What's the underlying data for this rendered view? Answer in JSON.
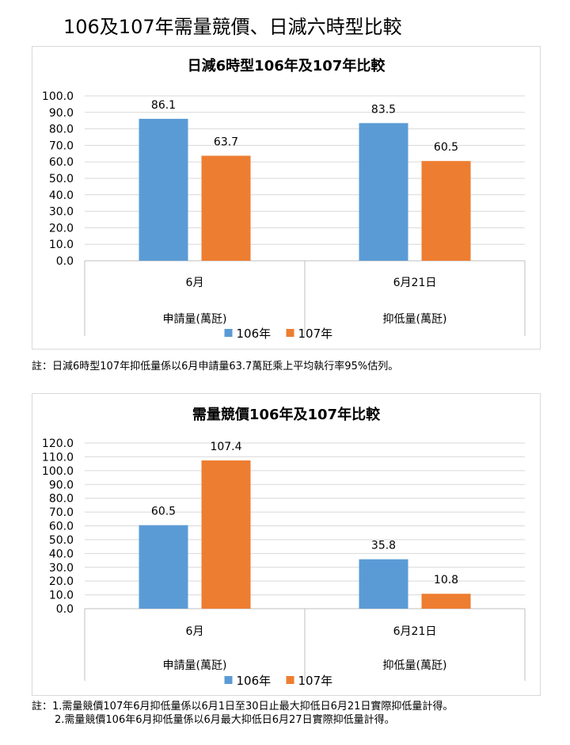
{
  "page": {
    "title": "106及107年需量競價、日減六時型比較"
  },
  "legend_colors": {
    "106年": "#5b9bd5",
    "107年": "#ed7d31"
  },
  "chart_data": [
    {
      "type": "bar",
      "title": "日減6時型106年及107年比較",
      "categories": [
        "6月",
        "6月21日"
      ],
      "group_labels": [
        "申請量(萬瓩)",
        "抑低量(萬瓩)"
      ],
      "series": [
        {
          "name": "106年",
          "values": [
            86.1,
            83.5
          ],
          "color": "#5b9bd5"
        },
        {
          "name": "107年",
          "values": [
            63.7,
            60.5
          ],
          "color": "#ed7d31"
        }
      ],
      "ylim": [
        0,
        100
      ],
      "ytick_step": 10,
      "y_tick_labels": [
        "0.0",
        "10.0",
        "20.0",
        "30.0",
        "40.0",
        "50.0",
        "60.0",
        "70.0",
        "80.0",
        "90.0",
        "100.0"
      ],
      "grid": true,
      "legend_position": "bottom"
    },
    {
      "type": "bar",
      "title": "需量競價106年及107年比較",
      "categories": [
        "6月",
        "6月21日"
      ],
      "group_labels": [
        "申請量(萬瓩)",
        "抑低量(萬瓩)"
      ],
      "series": [
        {
          "name": "106年",
          "values": [
            60.5,
            35.8
          ],
          "color": "#5b9bd5"
        },
        {
          "name": "107年",
          "values": [
            107.4,
            10.8
          ],
          "color": "#ed7d31"
        }
      ],
      "ylim": [
        0,
        120
      ],
      "ytick_step": 10,
      "y_tick_labels": [
        "0.0",
        "10.0",
        "20.0",
        "30.0",
        "40.0",
        "50.0",
        "60.0",
        "70.0",
        "80.0",
        "90.0",
        "100.0",
        "110.0",
        "120.0"
      ],
      "grid": true,
      "legend_position": "bottom"
    }
  ],
  "notes": {
    "chart1": "註：日減6時型107年抑低量係以6月申請量63.7萬瓩乘上平均執行率95%估列。",
    "chart2_line1": "註：1.需量競價107年6月抑低量係以6月1日至30日止最大抑低日6月21日實際抑低量計得。",
    "chart2_line2": "2.需量競價106年6月抑低量係以6月最大抑低日6月27日實際抑低量計得。"
  }
}
